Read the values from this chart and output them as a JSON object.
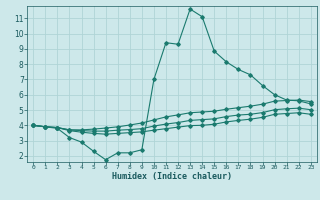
{
  "xlabel": "Humidex (Indice chaleur)",
  "bg_color": "#cde8ea",
  "grid_color": "#b0d4d6",
  "line_color": "#1a7a6e",
  "x_ticks": [
    0,
    1,
    2,
    3,
    4,
    5,
    6,
    7,
    8,
    9,
    10,
    11,
    12,
    13,
    14,
    15,
    16,
    17,
    18,
    19,
    20,
    21,
    22,
    23
  ],
  "y_ticks": [
    2,
    3,
    4,
    5,
    6,
    7,
    8,
    9,
    10,
    11
  ],
  "xlim": [
    -0.5,
    23.5
  ],
  "ylim": [
    1.6,
    11.8
  ],
  "line1_x": [
    0,
    1,
    2,
    3,
    4,
    5,
    6,
    7,
    8,
    9,
    10,
    11,
    12,
    13,
    14,
    15,
    16,
    17,
    18,
    19,
    20,
    21,
    22,
    23
  ],
  "line1_y": [
    4.0,
    3.9,
    3.8,
    3.2,
    2.9,
    2.3,
    1.75,
    2.2,
    2.2,
    2.4,
    7.0,
    9.4,
    9.3,
    11.6,
    11.1,
    8.85,
    8.15,
    7.65,
    7.3,
    6.6,
    6.0,
    5.65,
    5.6,
    5.4
  ],
  "line2_x": [
    0,
    1,
    2,
    3,
    4,
    5,
    6,
    7,
    8,
    9,
    10,
    11,
    12,
    13,
    14,
    15,
    16,
    17,
    18,
    19,
    20,
    21,
    22,
    23
  ],
  "line2_y": [
    4.0,
    3.9,
    3.85,
    3.7,
    3.7,
    3.75,
    3.82,
    3.9,
    4.02,
    4.15,
    4.35,
    4.55,
    4.68,
    4.82,
    4.87,
    4.92,
    5.05,
    5.15,
    5.25,
    5.38,
    5.58,
    5.62,
    5.65,
    5.55
  ],
  "line3_x": [
    0,
    1,
    2,
    3,
    4,
    5,
    6,
    7,
    8,
    9,
    10,
    11,
    12,
    13,
    14,
    15,
    16,
    17,
    18,
    19,
    20,
    21,
    22,
    23
  ],
  "line3_y": [
    4.0,
    3.9,
    3.85,
    3.7,
    3.65,
    3.62,
    3.62,
    3.68,
    3.72,
    3.78,
    3.95,
    4.08,
    4.18,
    4.32,
    4.37,
    4.42,
    4.57,
    4.67,
    4.72,
    4.83,
    5.02,
    5.08,
    5.12,
    5.02
  ],
  "line4_x": [
    0,
    1,
    2,
    3,
    4,
    5,
    6,
    7,
    8,
    9,
    10,
    11,
    12,
    13,
    14,
    15,
    16,
    17,
    18,
    19,
    20,
    21,
    22,
    23
  ],
  "line4_y": [
    4.0,
    3.9,
    3.85,
    3.65,
    3.55,
    3.47,
    3.42,
    3.47,
    3.52,
    3.57,
    3.68,
    3.78,
    3.88,
    3.98,
    4.0,
    4.07,
    4.22,
    4.32,
    4.4,
    4.52,
    4.72,
    4.77,
    4.82,
    4.72
  ]
}
